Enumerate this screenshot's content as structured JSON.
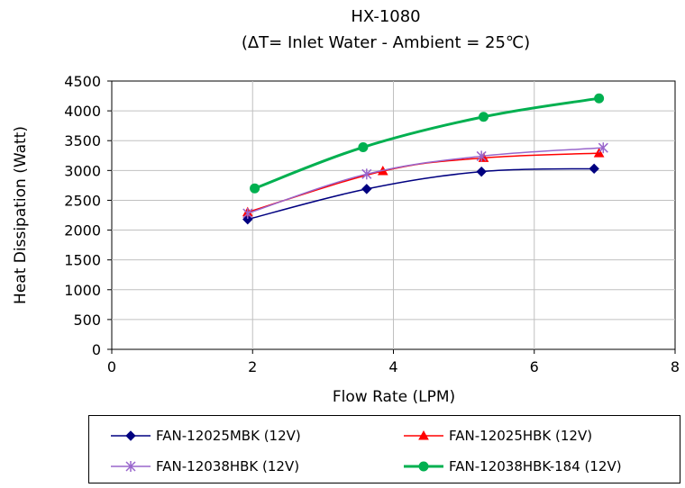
{
  "chart_data": {
    "type": "line",
    "title": "HX-1080",
    "subtitle": "(ΔT= Inlet Water - Ambient = 25℃)",
    "xlabel": "Flow Rate (LPM)",
    "ylabel": "Heat Dissipation (Watt)",
    "xlim": [
      0,
      8
    ],
    "ylim": [
      0,
      4500
    ],
    "xticks": [
      "0",
      "2",
      "4",
      "6",
      "8"
    ],
    "yticks": [
      "0",
      "500",
      "1000",
      "1500",
      "2000",
      "2500",
      "3000",
      "3500",
      "4000",
      "4500"
    ],
    "grid": true,
    "legend_placement": "bottom",
    "series": [
      {
        "name": "FAN-12025MBK (12V)",
        "color": "#000080",
        "marker": "diamond",
        "x": [
          1.93,
          3.62,
          5.25,
          6.85
        ],
        "y": [
          2180,
          2690,
          2980,
          3030
        ]
      },
      {
        "name": "FAN-12025HBK (12V)",
        "color": "#ff0000",
        "marker": "triangle",
        "x": [
          1.93,
          3.85,
          5.28,
          6.92
        ],
        "y": [
          2300,
          2990,
          3210,
          3290
        ]
      },
      {
        "name": "FAN-12038HBK (12V)",
        "color": "#9966cc",
        "marker": "asterisk",
        "x": [
          1.93,
          3.62,
          5.25,
          6.98
        ],
        "y": [
          2280,
          2940,
          3240,
          3380
        ]
      },
      {
        "name": "FAN-12038HBK-184 (12V)",
        "color": "#00b050",
        "marker": "circle",
        "x": [
          2.03,
          3.57,
          5.28,
          6.92
        ],
        "y": [
          2700,
          3390,
          3900,
          4210
        ]
      }
    ]
  }
}
